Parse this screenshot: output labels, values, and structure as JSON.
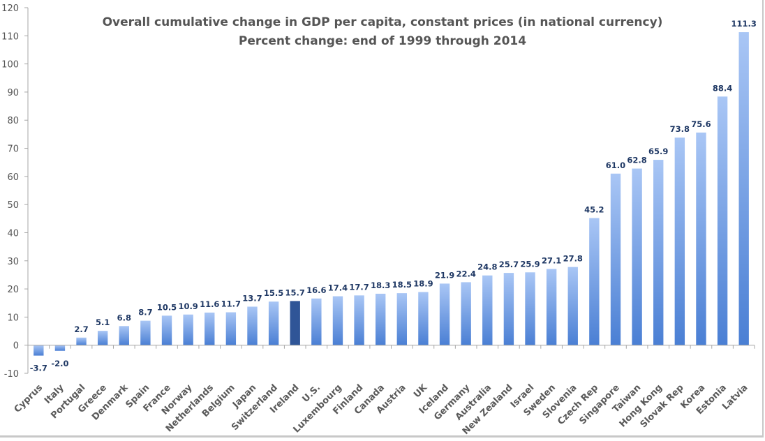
{
  "chart_data": {
    "type": "bar",
    "title": "Overall cumulative change in GDP per capita, constant prices (in national currency)",
    "subtitle": "Percent change: end of 1999 through 2014",
    "xlabel": "",
    "ylabel": "",
    "ylim": [
      -10,
      120
    ],
    "yticks": [
      -10,
      0,
      10,
      20,
      30,
      40,
      50,
      60,
      70,
      80,
      90,
      100,
      110,
      120
    ],
    "grid": false,
    "legend": "none",
    "categories": [
      "Cyprus",
      "Italy",
      "Portugal",
      "Greece",
      "Denmark",
      "Spain",
      "France",
      "Norway",
      "Netherlands",
      "Belgium",
      "Japan",
      "Switzerland",
      "Ireland",
      "U.S.",
      "Luxembourg",
      "Finland",
      "Canada",
      "Austria",
      "UK",
      "Iceland",
      "Germany",
      "Australia",
      "New Zealand",
      "Israel",
      "Sweden",
      "Slovenia",
      "Czech Rep",
      "Singapore",
      "Taiwan",
      "Hong Kong",
      "Slovak Rep",
      "Korea",
      "Estonia",
      "Latvia"
    ],
    "values": [
      -3.7,
      -2.0,
      2.7,
      5.1,
      6.8,
      8.7,
      10.5,
      10.9,
      11.6,
      11.7,
      13.7,
      15.5,
      15.7,
      16.6,
      17.4,
      17.7,
      18.3,
      18.5,
      18.9,
      21.9,
      22.4,
      24.8,
      25.7,
      25.9,
      27.1,
      27.8,
      45.2,
      61.0,
      62.8,
      65.9,
      73.8,
      75.6,
      88.4,
      111.3
    ],
    "data_labels": [
      "-3.7",
      "-2.0",
      "2.7",
      "5.1",
      "6.8",
      "8.7",
      "10.5",
      "10.9",
      "11.6",
      "11.7",
      "13.7",
      "15.5",
      "15.7",
      "16.6",
      "17.4",
      "17.7",
      "18.3",
      "18.5",
      "18.9",
      "21.9",
      "22.4",
      "24.8",
      "25.7",
      "25.9",
      "27.1",
      "27.8",
      "45.2",
      "61.0",
      "62.8",
      "65.9",
      "73.8",
      "75.6",
      "88.4",
      "111.3"
    ],
    "highlight": "Ireland",
    "colors": {
      "bar_top": "#a9c6f5",
      "bar_bottom": "#4a7fd4",
      "highlight": "#2f5597",
      "data_label": "#1f3864",
      "axis": "#a6a6a6",
      "text": "#555555"
    }
  }
}
